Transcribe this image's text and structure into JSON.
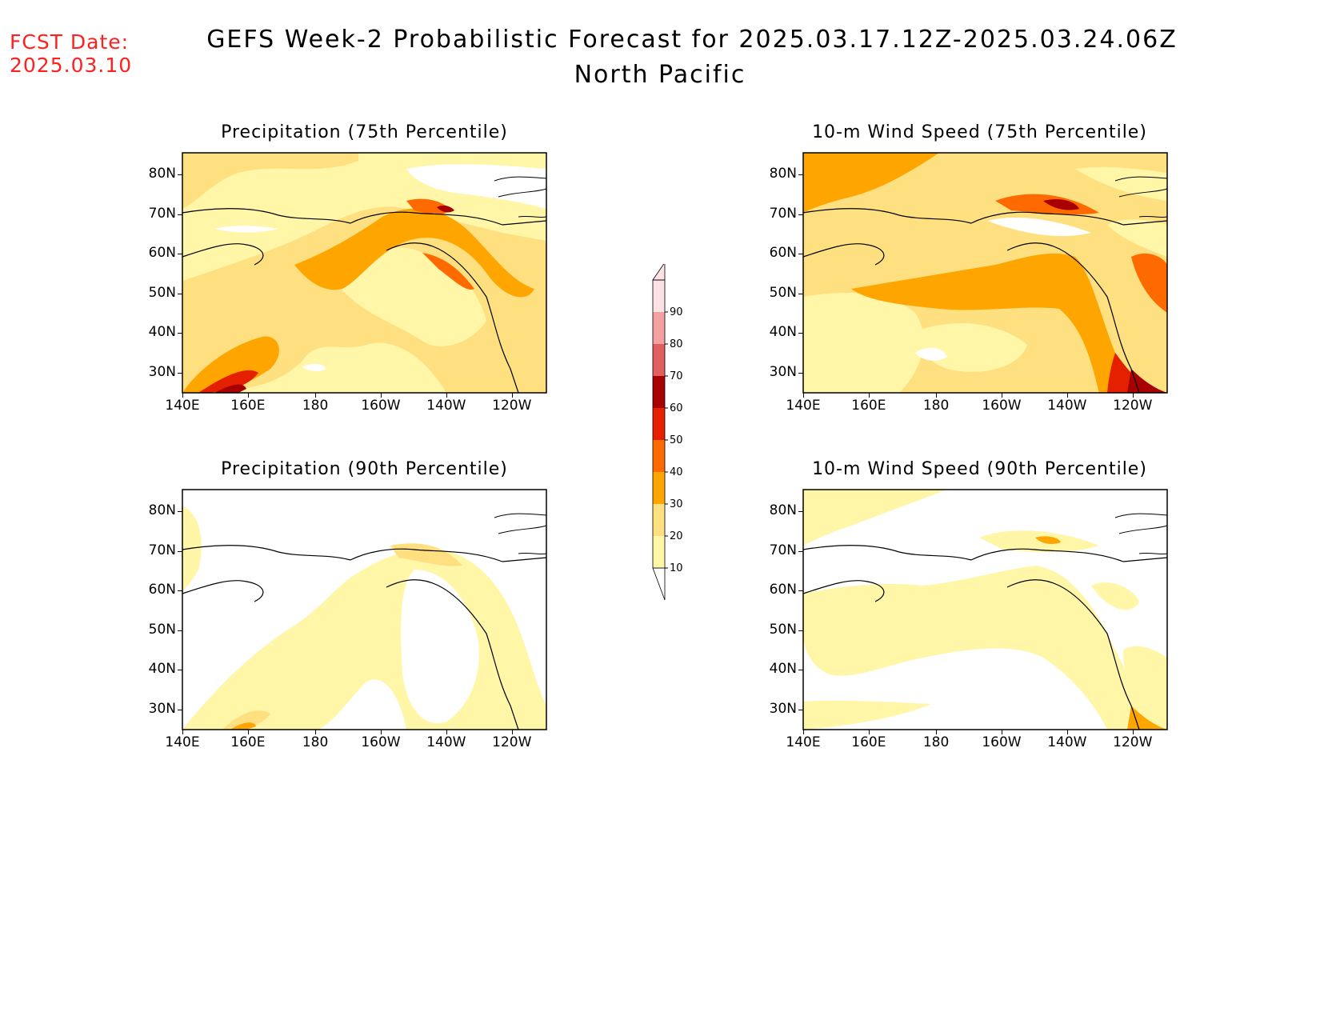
{
  "header": {
    "fcst_label": "FCST Date:",
    "fcst_date": "2025.03.10",
    "title": "GEFS Week-2 Probabilistic Forecast for 2025.03.17.12Z-2025.03.24.06Z",
    "subtitle": "North Pacific"
  },
  "panels": [
    {
      "title": "Precipitation (75th Percentile)"
    },
    {
      "title": "10-m Wind Speed (75th Percentile)"
    },
    {
      "title": "Precipitation (90th Percentile)"
    },
    {
      "title": "10-m Wind Speed (90th Percentile)"
    }
  ],
  "axes": {
    "lat_labels": [
      "80N",
      "70N",
      "60N",
      "50N",
      "40N",
      "30N"
    ],
    "lon_labels": [
      "140E",
      "160E",
      "180",
      "160W",
      "140W",
      "120W"
    ]
  },
  "colorbar": {
    "levels": [
      "10",
      "20",
      "30",
      "40",
      "50",
      "60",
      "70",
      "80",
      "90"
    ],
    "colors": [
      "#fff7a8",
      "#ffe080",
      "#ffa500",
      "#ff6a00",
      "#e42000",
      "#a80000",
      "#e06060",
      "#f3a0a0",
      "#fde2e4"
    ]
  }
}
